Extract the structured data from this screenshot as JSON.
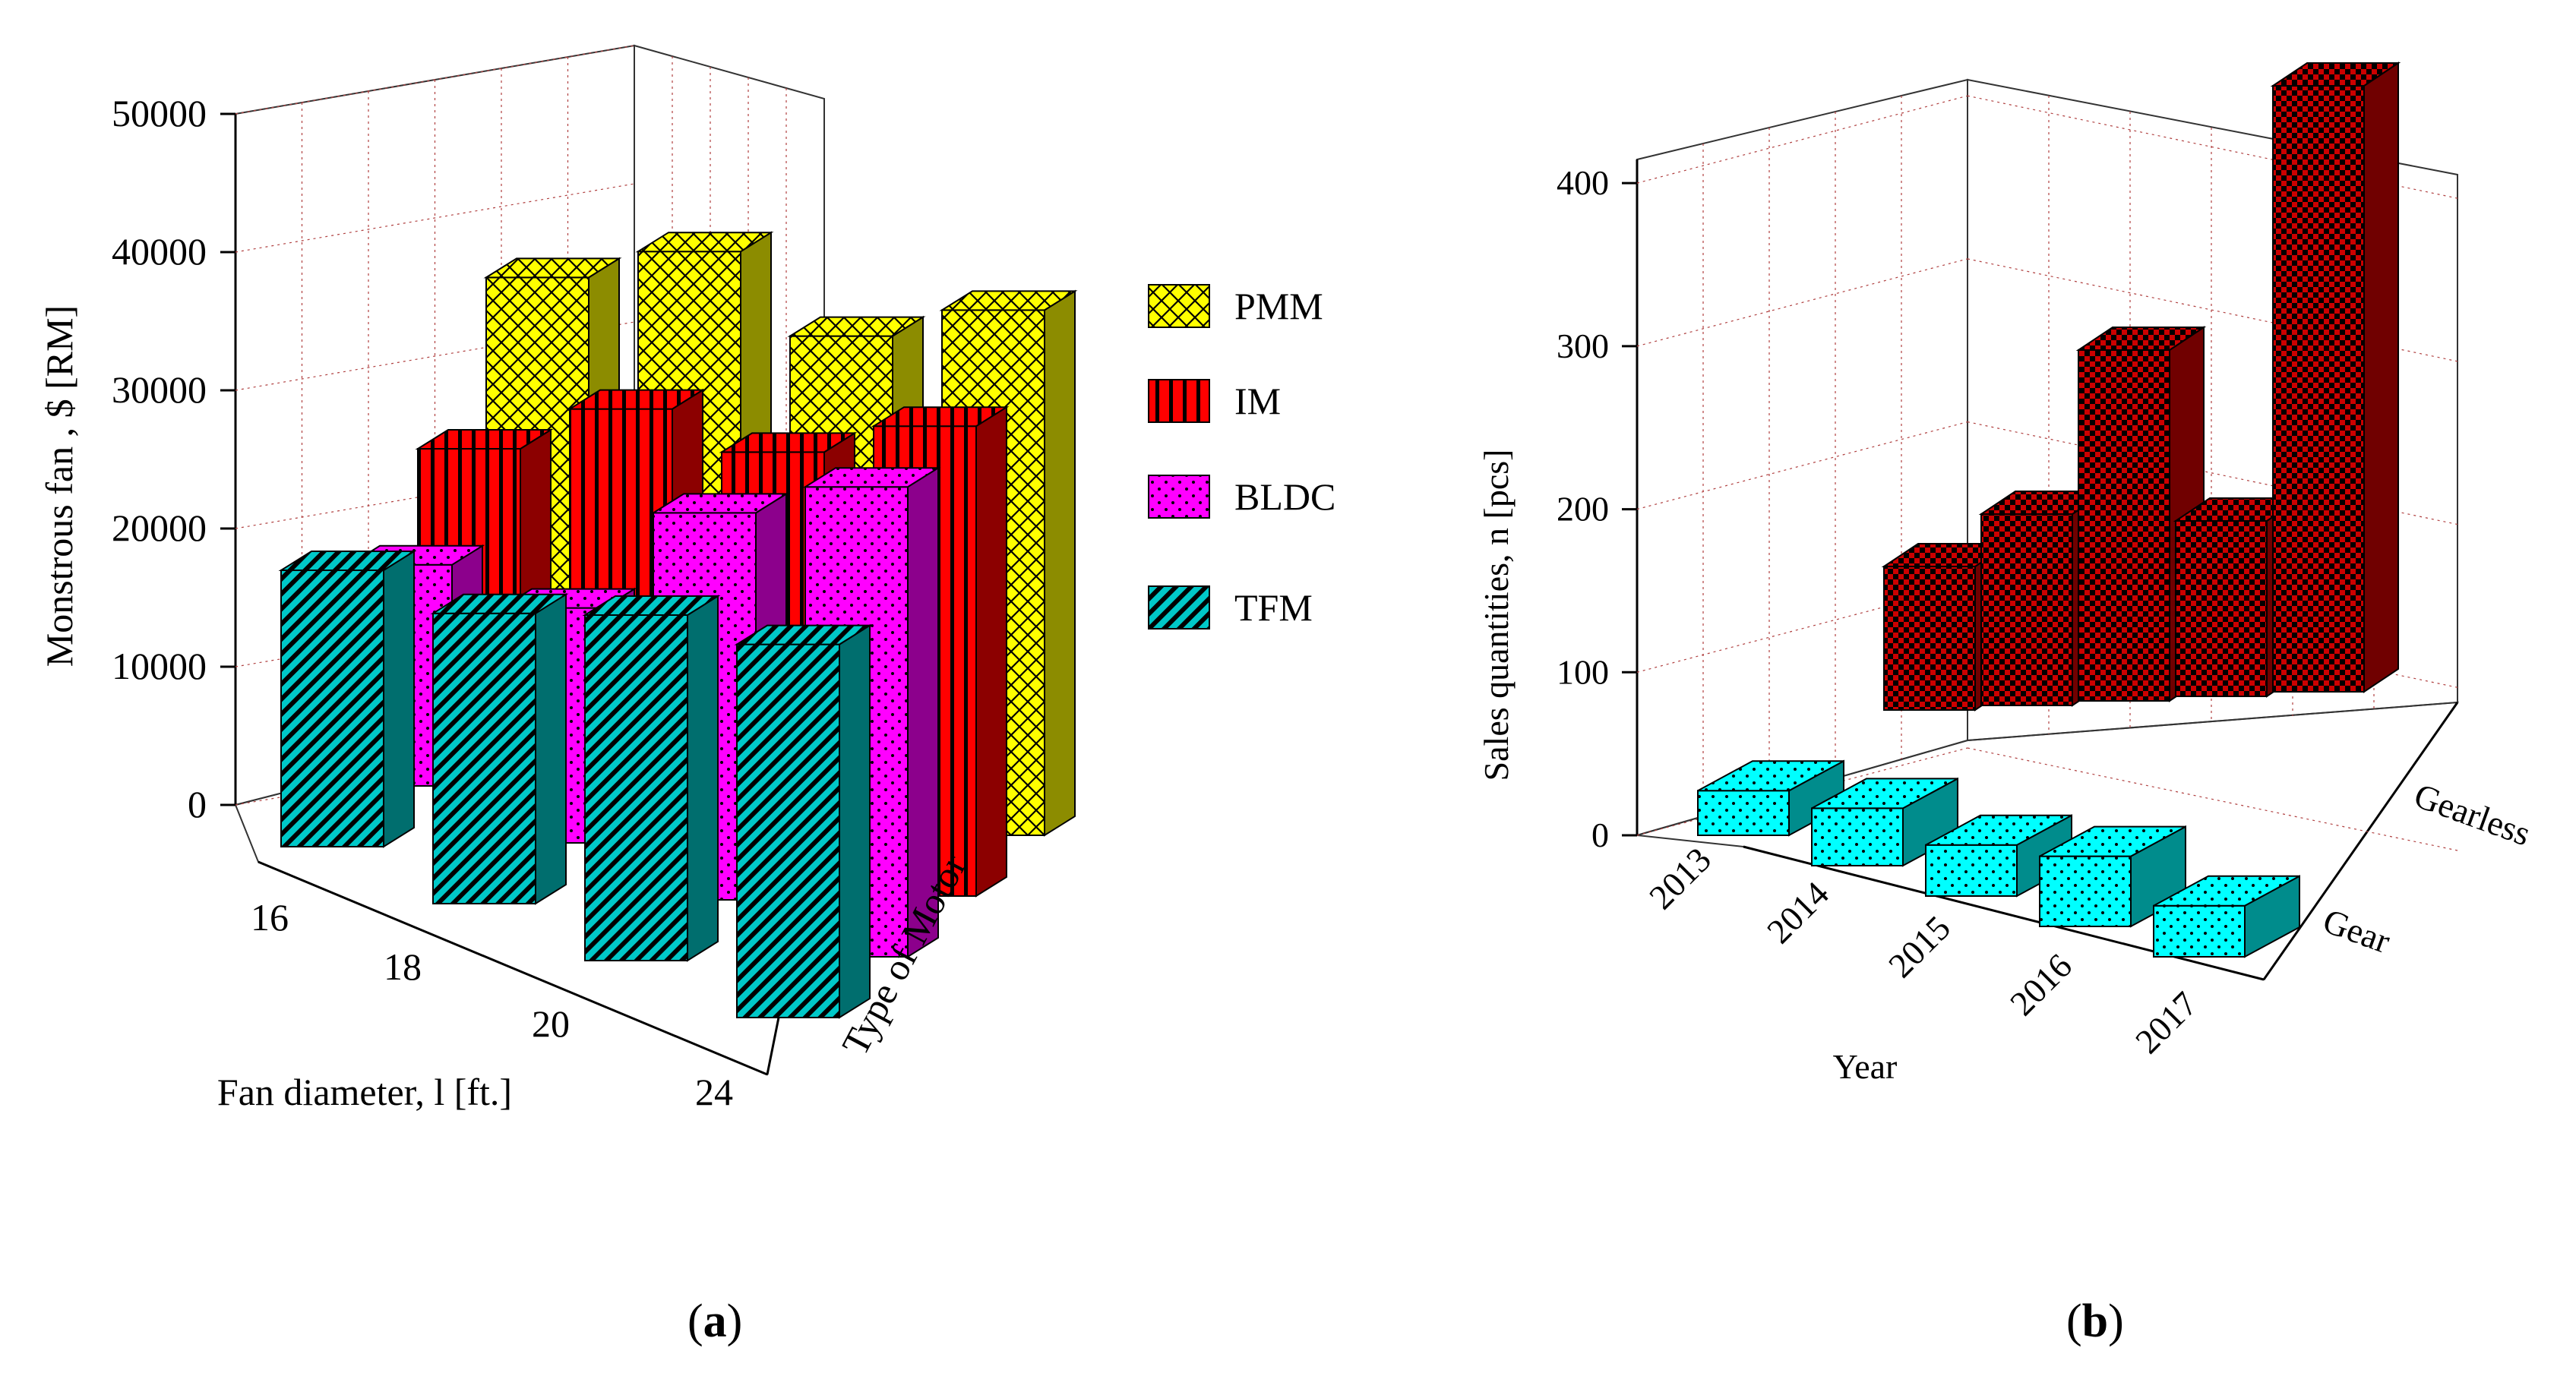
{
  "figure": {
    "panel_a_label": {
      "open": "(",
      "letter": "a",
      "close": ")"
    },
    "panel_b_label": {
      "open": "(",
      "letter": "b",
      "close": ")"
    }
  },
  "chart_data": [
    {
      "type": "bar",
      "variant": "3d-bar",
      "panel": "a",
      "title": "",
      "ylabel": "Monstrous fan , $ [RM]",
      "xlabel": "Fan diameter, l [ft.]",
      "zlabel": "Type of Motor",
      "categories": [
        "16",
        "18",
        "20",
        "24"
      ],
      "ylim": [
        0,
        50000
      ],
      "yticks": [
        "0",
        "10000",
        "20000",
        "30000",
        "40000",
        "50000"
      ],
      "legend_position": "right",
      "grid": true,
      "series": [
        {
          "name": "PMM",
          "color": "#ffff00",
          "pattern": "diamond-lattice",
          "values": [
            28000,
            34000,
            32000,
            38000
          ]
        },
        {
          "name": "IM",
          "color": "#ff0000",
          "pattern": "vertical-stripes",
          "values": [
            20000,
            27000,
            28000,
            34000
          ]
        },
        {
          "name": "BLDC",
          "color": "#ff00ff",
          "pattern": "dots",
          "values": [
            16000,
            17000,
            28000,
            34000
          ]
        },
        {
          "name": "TFM",
          "color": "#00c8c8",
          "pattern": "diagonal-stripes",
          "values": [
            20000,
            21000,
            25000,
            27000
          ]
        }
      ]
    },
    {
      "type": "bar",
      "variant": "3d-bar",
      "panel": "b",
      "title": "",
      "ylabel": "Sales quantities, n [pcs]",
      "xlabel": "Year",
      "categories": [
        "2013",
        "2014",
        "2015",
        "2016",
        "2017"
      ],
      "zcategories": [
        "Gear",
        "Gearless"
      ],
      "ylim": [
        0,
        400
      ],
      "yticks": [
        "0",
        "100",
        "200",
        "300",
        "400"
      ],
      "grid": true,
      "series": [
        {
          "name": "Gearless",
          "color": "#cc0000",
          "pattern": "checker",
          "values": [
            90,
            120,
            220,
            110,
            380
          ]
        },
        {
          "name": "Gear",
          "color": "#00ffff",
          "pattern": "dots",
          "values": [
            35,
            45,
            40,
            55,
            40
          ]
        }
      ]
    }
  ]
}
